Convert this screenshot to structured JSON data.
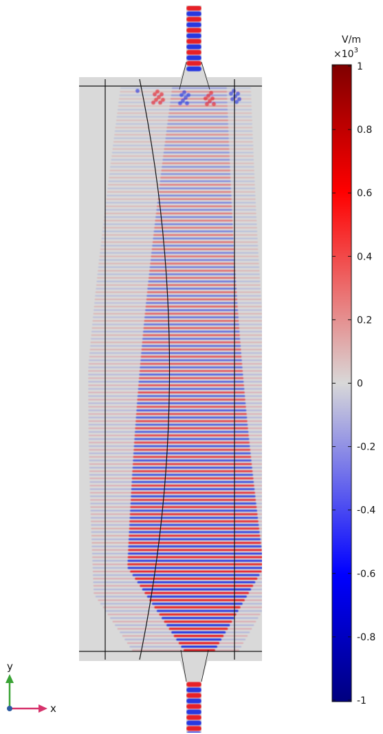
{
  "colorbar": {
    "unit": "V/m",
    "multiplier": "×10",
    "exponent": "3",
    "ticks": [
      {
        "label": "1",
        "value": 1
      },
      {
        "label": "0.8",
        "value": 0.8
      },
      {
        "label": "0.6",
        "value": 0.6
      },
      {
        "label": "0.4",
        "value": 0.4
      },
      {
        "label": "0.2",
        "value": 0.2
      },
      {
        "label": "0",
        "value": 0
      },
      {
        "label": "-0.2",
        "value": -0.2
      },
      {
        "label": "-0.4",
        "value": -0.4
      },
      {
        "label": "-0.6",
        "value": -0.6
      },
      {
        "label": "-0.8",
        "value": -0.8
      },
      {
        "label": "-1",
        "value": -1
      }
    ],
    "colors": {
      "max": "#7f0000",
      "high": "#ff0000",
      "zero": "#d8d8d8",
      "low": "#0000ff",
      "min": "#00007f"
    }
  },
  "axes": {
    "y_label": "y",
    "x_label": "x",
    "y_color": "#3aa335",
    "x_color": "#d6336c",
    "z_color": "#2c5aa0"
  },
  "colors": {
    "background": "#d9d9d9",
    "outline": "#111111"
  }
}
